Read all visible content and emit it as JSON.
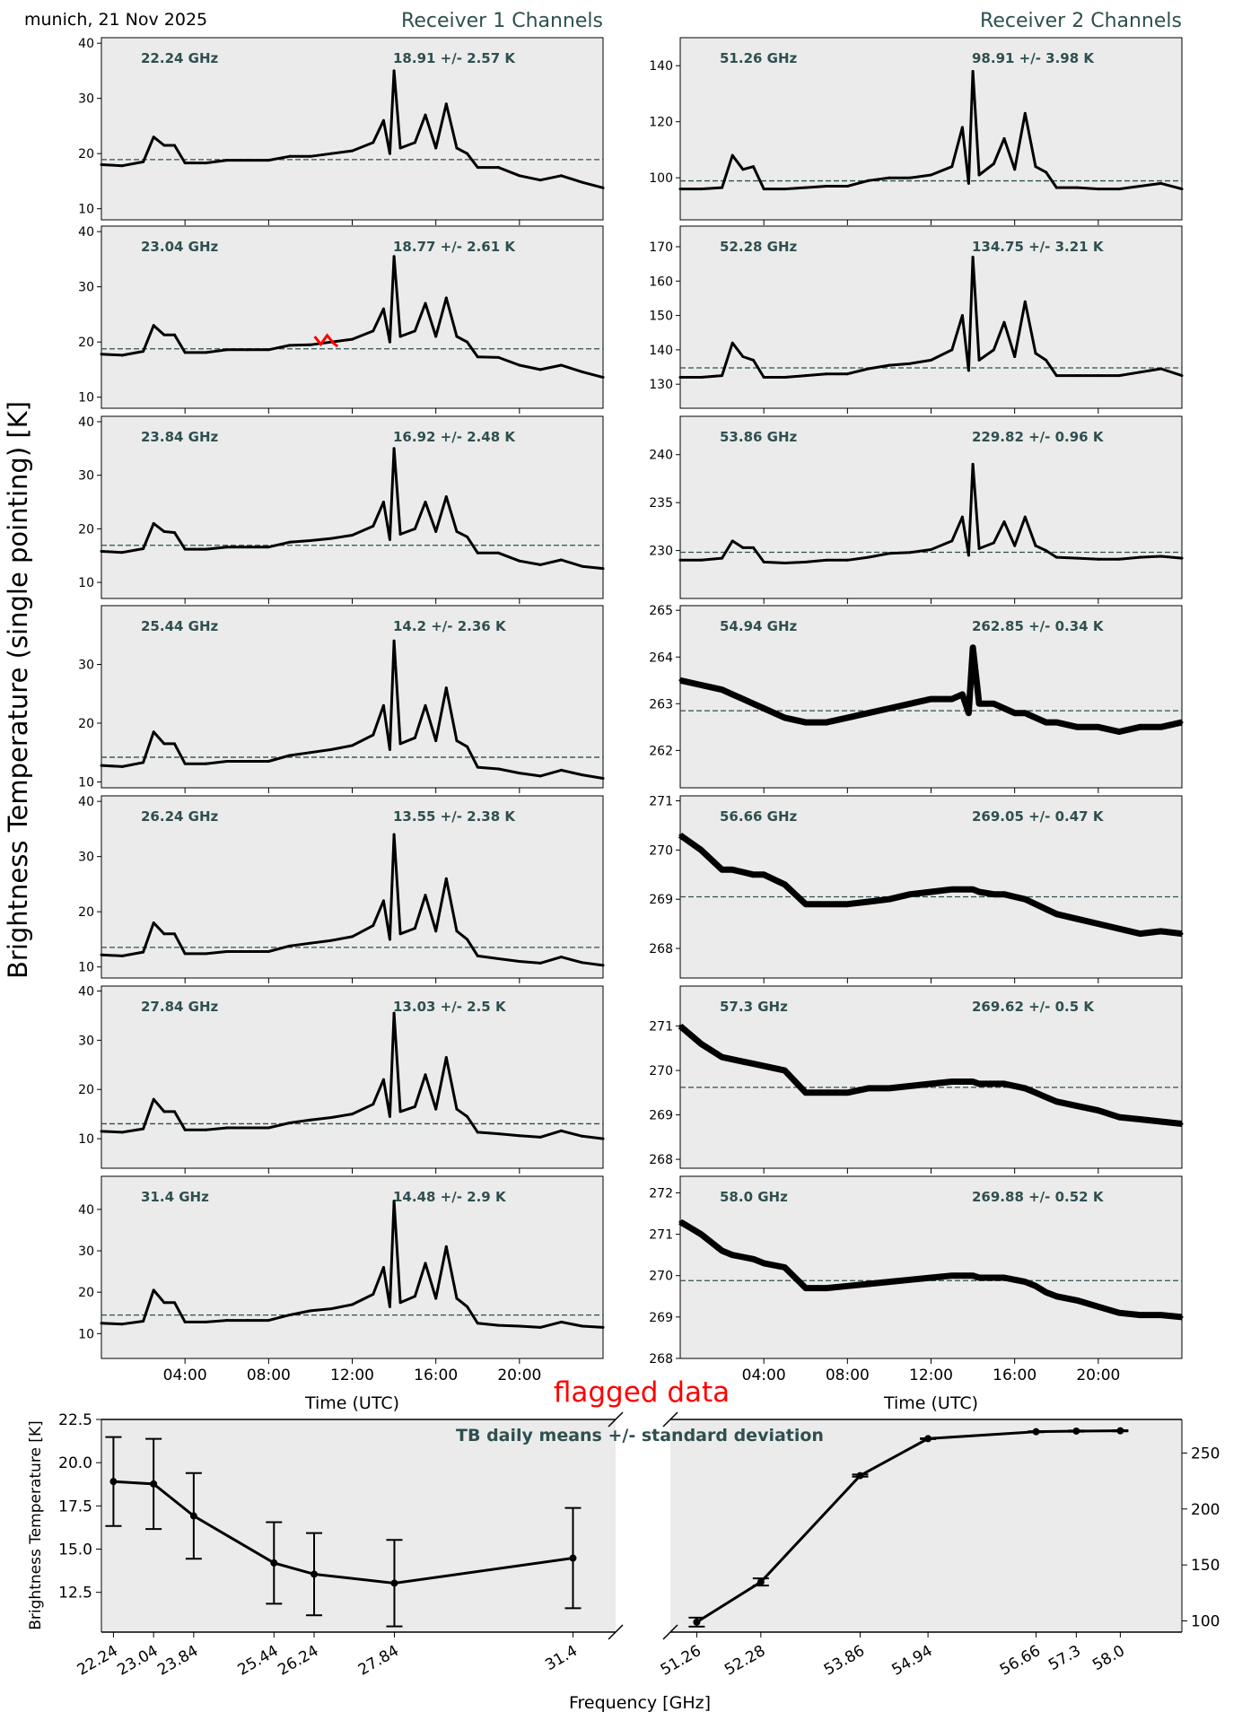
{
  "header": {
    "location_date": "munich, 21 Nov 2025",
    "receiver1_title": "Receiver 1 Channels",
    "receiver2_title": "Receiver 2 Channels"
  },
  "ylabel_main": "Brightness Temperature (single pointing) [K]",
  "flag_label": "flagged data",
  "colors": {
    "line": "#000000",
    "mean_line": "#2f4f4f",
    "annotation": "#2f4f4f",
    "flagged": "#ff0000",
    "axes_bg": "#ebebeb"
  },
  "chart_data": [
    {
      "type": "line",
      "xlabel": "Time (UTC)",
      "xlim": [
        0,
        24
      ],
      "xticks": [
        4,
        8,
        12,
        16,
        20
      ],
      "xtick_labels": [
        "04:00",
        "08:00",
        "12:00",
        "16:00",
        "20:00"
      ],
      "times": [
        0,
        1,
        2,
        2.5,
        3,
        3.5,
        4,
        5,
        6,
        7,
        8,
        9,
        10,
        11,
        12,
        13,
        13.5,
        13.8,
        14,
        14.3,
        15,
        15.5,
        16,
        16.5,
        17,
        17.5,
        18,
        19,
        20,
        21,
        22,
        23,
        24
      ],
      "receiver1": [
        {
          "freq_label": "22.24 GHz",
          "stats_label": "18.91 +/- 2.57 K",
          "mean": 18.91,
          "std": 2.57,
          "ylim": [
            8,
            41
          ],
          "yticks": [
            10,
            20,
            30,
            40
          ],
          "values": [
            18,
            17.8,
            18.5,
            23,
            21.5,
            21.5,
            18.3,
            18.3,
            18.8,
            18.8,
            18.8,
            19.5,
            19.5,
            20,
            20.5,
            22,
            26,
            20,
            35,
            21,
            22,
            27,
            21,
            29,
            21,
            20,
            17.5,
            17.5,
            16,
            15.2,
            16,
            14.8,
            13.8
          ]
        },
        {
          "freq_label": "23.04 GHz",
          "stats_label": "18.77 +/- 2.61 K",
          "mean": 18.77,
          "std": 2.61,
          "ylim": [
            8,
            41
          ],
          "yticks": [
            10,
            20,
            30,
            40
          ],
          "values": [
            17.8,
            17.6,
            18.3,
            23,
            21.3,
            21.3,
            18.1,
            18.1,
            18.6,
            18.6,
            18.6,
            19.4,
            19.5,
            20,
            20.5,
            22,
            26,
            20,
            35.5,
            21,
            22,
            27,
            21,
            28,
            21,
            20,
            17.3,
            17.2,
            15.8,
            15,
            15.8,
            14.6,
            13.6
          ],
          "flagged": [
            [
              10.2,
              21
            ],
            [
              10.5,
              19.6
            ],
            [
              10.8,
              21.2
            ],
            [
              11.1,
              19.8
            ],
            [
              11.3,
              19.2
            ]
          ]
        },
        {
          "freq_label": "23.84 GHz",
          "stats_label": "16.92 +/- 2.48 K",
          "mean": 16.92,
          "std": 2.48,
          "ylim": [
            7,
            41
          ],
          "yticks": [
            10,
            20,
            30,
            40
          ],
          "values": [
            15.8,
            15.6,
            16.3,
            21,
            19.5,
            19.3,
            16.2,
            16.2,
            16.6,
            16.6,
            16.6,
            17.5,
            17.8,
            18.2,
            18.8,
            20.5,
            25,
            18,
            35,
            19,
            20,
            25,
            19.5,
            26,
            19.5,
            18.5,
            15.5,
            15.5,
            14,
            13.3,
            14.2,
            13,
            12.6
          ]
        },
        {
          "freq_label": "25.44 GHz",
          "stats_label": "14.2 +/- 2.36 K",
          "mean": 14.2,
          "std": 2.36,
          "ylim": [
            9,
            40
          ],
          "yticks": [
            10,
            20,
            30
          ],
          "values": [
            12.8,
            12.6,
            13.3,
            18.5,
            16.5,
            16.5,
            13.1,
            13.1,
            13.5,
            13.5,
            13.5,
            14.5,
            15,
            15.5,
            16.2,
            18,
            23,
            15.5,
            34,
            16.5,
            17.5,
            23,
            17,
            26,
            17,
            16,
            12.5,
            12.2,
            11.5,
            11,
            12,
            11.2,
            10.6
          ]
        },
        {
          "freq_label": "26.24 GHz",
          "stats_label": "13.55 +/- 2.38 K",
          "mean": 13.55,
          "std": 2.38,
          "ylim": [
            8,
            41
          ],
          "yticks": [
            10,
            20,
            30,
            40
          ],
          "values": [
            12.2,
            12,
            12.7,
            18,
            16,
            16,
            12.4,
            12.4,
            12.8,
            12.8,
            12.8,
            13.8,
            14.3,
            14.8,
            15.5,
            17.5,
            22,
            15,
            34,
            16,
            17,
            23,
            16.5,
            26,
            16.5,
            15,
            12,
            11.5,
            11,
            10.7,
            11.8,
            10.8,
            10.3
          ]
        },
        {
          "freq_label": "27.84 GHz",
          "stats_label": "13.03 +/- 2.5 K",
          "mean": 13.03,
          "std": 2.5,
          "ylim": [
            4,
            41
          ],
          "yticks": [
            10,
            20,
            30,
            40
          ],
          "values": [
            11.5,
            11.3,
            12,
            18,
            15.5,
            15.5,
            11.8,
            11.8,
            12.2,
            12.2,
            12.2,
            13.2,
            13.8,
            14.3,
            15,
            17,
            22,
            14.5,
            35.5,
            15.5,
            16.5,
            23,
            16,
            26.5,
            16,
            14.5,
            11.3,
            11,
            10.6,
            10.3,
            11.6,
            10.5,
            10
          ]
        },
        {
          "freq_label": "31.4 GHz",
          "stats_label": "14.48 +/- 2.9 K",
          "mean": 14.48,
          "std": 2.9,
          "ylim": [
            4,
            48
          ],
          "yticks": [
            10,
            20,
            30,
            40
          ],
          "values": [
            12.5,
            12.3,
            13,
            20.5,
            17.5,
            17.5,
            12.8,
            12.8,
            13.2,
            13.2,
            13.2,
            14.5,
            15.5,
            16,
            17,
            19.5,
            26,
            16.5,
            42,
            17.5,
            19,
            27,
            18.5,
            31,
            18.5,
            16.5,
            12.5,
            12,
            11.8,
            11.5,
            12.8,
            11.8,
            11.5
          ]
        }
      ],
      "receiver2": [
        {
          "freq_label": "51.26 GHz",
          "stats_label": "98.91 +/- 3.98 K",
          "mean": 98.91,
          "std": 3.98,
          "ylim": [
            85,
            150
          ],
          "yticks": [
            100,
            120,
            140
          ],
          "values": [
            96,
            96,
            96.5,
            108,
            103,
            104,
            96,
            96,
            96.5,
            97,
            97,
            99,
            100,
            100,
            101,
            104,
            118,
            98,
            138,
            101,
            105,
            114,
            103,
            123,
            104,
            102,
            96.5,
            96.5,
            96,
            96,
            97,
            98,
            96
          ]
        },
        {
          "freq_label": "52.28 GHz",
          "stats_label": "134.75 +/- 3.21 K",
          "mean": 134.75,
          "std": 3.21,
          "ylim": [
            123,
            176
          ],
          "yticks": [
            130,
            140,
            150,
            160,
            170
          ],
          "values": [
            132,
            132,
            132.5,
            142,
            138,
            137,
            132,
            132,
            132.5,
            133,
            133,
            134.5,
            135.5,
            136,
            137,
            140,
            150,
            134,
            167,
            137,
            140,
            148,
            138,
            154,
            139,
            137,
            132.5,
            132.5,
            132.5,
            132.5,
            133.5,
            134.5,
            132.5
          ]
        },
        {
          "freq_label": "53.86 GHz",
          "stats_label": "229.82 +/- 0.96 K",
          "mean": 229.82,
          "std": 0.96,
          "ylim": [
            225,
            244
          ],
          "yticks": [
            230,
            235,
            240
          ],
          "values": [
            229,
            229,
            229.2,
            231,
            230.3,
            230.3,
            228.8,
            228.7,
            228.8,
            229,
            229,
            229.3,
            229.7,
            229.8,
            230.1,
            231,
            233.5,
            229.5,
            239,
            230.2,
            230.8,
            233,
            230.5,
            233.5,
            230.5,
            230,
            229.3,
            229.2,
            229.1,
            229.1,
            229.3,
            229.4,
            229.2
          ]
        },
        {
          "freq_label": "54.94 GHz",
          "stats_label": "262.85 +/- 0.34 K",
          "mean": 262.85,
          "std": 0.34,
          "ylim": [
            261.2,
            265.1
          ],
          "yticks": [
            262,
            263,
            264,
            265
          ],
          "values": [
            263.5,
            263.4,
            263.3,
            263.2,
            263.1,
            263,
            262.9,
            262.7,
            262.6,
            262.6,
            262.7,
            262.8,
            262.9,
            263,
            263.1,
            263.1,
            263.2,
            262.8,
            264.2,
            263,
            263,
            262.9,
            262.8,
            262.8,
            262.7,
            262.6,
            262.6,
            262.5,
            262.5,
            262.4,
            262.5,
            262.5,
            262.6
          ]
        },
        {
          "freq_label": "56.66 GHz",
          "stats_label": "269.05 +/- 0.47 K",
          "mean": 269.05,
          "std": 0.47,
          "ylim": [
            267.4,
            271.1
          ],
          "yticks": [
            268,
            269,
            270,
            271
          ],
          "values": [
            270.3,
            270,
            269.6,
            269.6,
            269.55,
            269.5,
            269.5,
            269.3,
            268.9,
            268.9,
            268.9,
            268.95,
            269,
            269.1,
            269.15,
            269.2,
            269.2,
            269.2,
            269.2,
            269.15,
            269.1,
            269.1,
            269.05,
            269,
            268.9,
            268.8,
            268.7,
            268.6,
            268.5,
            268.4,
            268.3,
            268.35,
            268.3
          ]
        },
        {
          "freq_label": "57.3 GHz",
          "stats_label": "269.62 +/- 0.5 K",
          "mean": 269.62,
          "std": 0.5,
          "ylim": [
            267.8,
            271.9
          ],
          "yticks": [
            268,
            269,
            270,
            271
          ],
          "values": [
            271,
            270.6,
            270.3,
            270.25,
            270.2,
            270.15,
            270.1,
            270,
            269.5,
            269.5,
            269.5,
            269.6,
            269.6,
            269.65,
            269.7,
            269.75,
            269.75,
            269.75,
            269.75,
            269.7,
            269.7,
            269.7,
            269.65,
            269.6,
            269.5,
            269.4,
            269.3,
            269.2,
            269.1,
            268.95,
            268.9,
            268.85,
            268.8
          ]
        },
        {
          "freq_label": "58.0 GHz",
          "stats_label": "269.88 +/- 0.52 K",
          "mean": 269.88,
          "std": 0.52,
          "ylim": [
            268,
            272.4
          ],
          "yticks": [
            268,
            269,
            270,
            271,
            272
          ],
          "values": [
            271.3,
            271,
            270.6,
            270.5,
            270.45,
            270.4,
            270.3,
            270.2,
            269.7,
            269.7,
            269.75,
            269.8,
            269.85,
            269.9,
            269.95,
            270,
            270,
            270,
            270,
            269.95,
            269.95,
            269.95,
            269.9,
            269.85,
            269.75,
            269.6,
            269.5,
            269.4,
            269.25,
            269.1,
            269.05,
            269.05,
            269
          ]
        }
      ]
    },
    {
      "type": "line",
      "title": "TB daily means +/- standard deviation",
      "xlabel": "Frequency [GHz]",
      "ylabel": "Brightness Temperature [K]",
      "broken_x_axis": true,
      "left": {
        "xlim": [
          22.0,
          32.25
        ],
        "ylim": [
          10.2,
          22.5
        ],
        "yticks": [
          12.5,
          15.0,
          17.5,
          20.0,
          22.5
        ],
        "ytick_labels": [
          "12.5",
          "15.0",
          "17.5",
          "20.0",
          "22.5"
        ],
        "x": [
          22.24,
          23.04,
          23.84,
          25.44,
          26.24,
          27.84,
          31.4
        ],
        "xtick_labels": [
          "22.24",
          "23.04",
          "23.84",
          "25.44",
          "26.24",
          "27.84",
          "31.4"
        ],
        "y": [
          18.91,
          18.77,
          16.92,
          14.2,
          13.55,
          13.03,
          14.48
        ],
        "err": [
          2.57,
          2.61,
          2.48,
          2.36,
          2.38,
          2.5,
          2.9
        ]
      },
      "right": {
        "xlim": [
          50.84,
          58.98
        ],
        "ylim": [
          90,
          280
        ],
        "yticks": [
          100,
          150,
          200,
          250
        ],
        "ytick_labels": [
          "100",
          "150",
          "200",
          "250"
        ],
        "x": [
          51.26,
          52.28,
          53.86,
          54.94,
          56.66,
          57.3,
          58.0
        ],
        "xtick_labels": [
          "51.26",
          "52.28",
          "53.86",
          "54.94",
          "56.66",
          "57.3",
          "58.0"
        ],
        "y": [
          98.91,
          134.75,
          229.82,
          262.85,
          269.05,
          269.62,
          269.88
        ],
        "err": [
          3.98,
          3.21,
          0.96,
          0.34,
          0.47,
          0.5,
          0.52
        ]
      }
    }
  ]
}
